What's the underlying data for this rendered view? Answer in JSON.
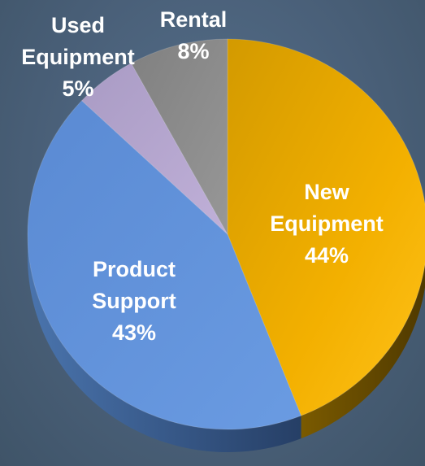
{
  "chart_data": {
    "type": "pie",
    "title": "",
    "slices": [
      {
        "name": "New Equipment",
        "label_lines": [
          "New",
          "Equipment",
          "44%"
        ],
        "value": 44,
        "color": "#f5b200"
      },
      {
        "name": "Product Support",
        "label_lines": [
          "Product",
          "Support",
          "43%"
        ],
        "value": 43,
        "color": "#5b8fd6"
      },
      {
        "name": "Used Equipment",
        "label_lines": [
          "Used",
          "Equipment",
          "5%"
        ],
        "value": 5,
        "color": "#b7a6cf"
      },
      {
        "name": "Rental",
        "label_lines": [
          "Rental",
          "8%"
        ],
        "value": 8,
        "color": "#8a8a8a"
      }
    ],
    "start_angle_deg": 0,
    "direction": "clockwise",
    "style": "3d-tilted"
  }
}
